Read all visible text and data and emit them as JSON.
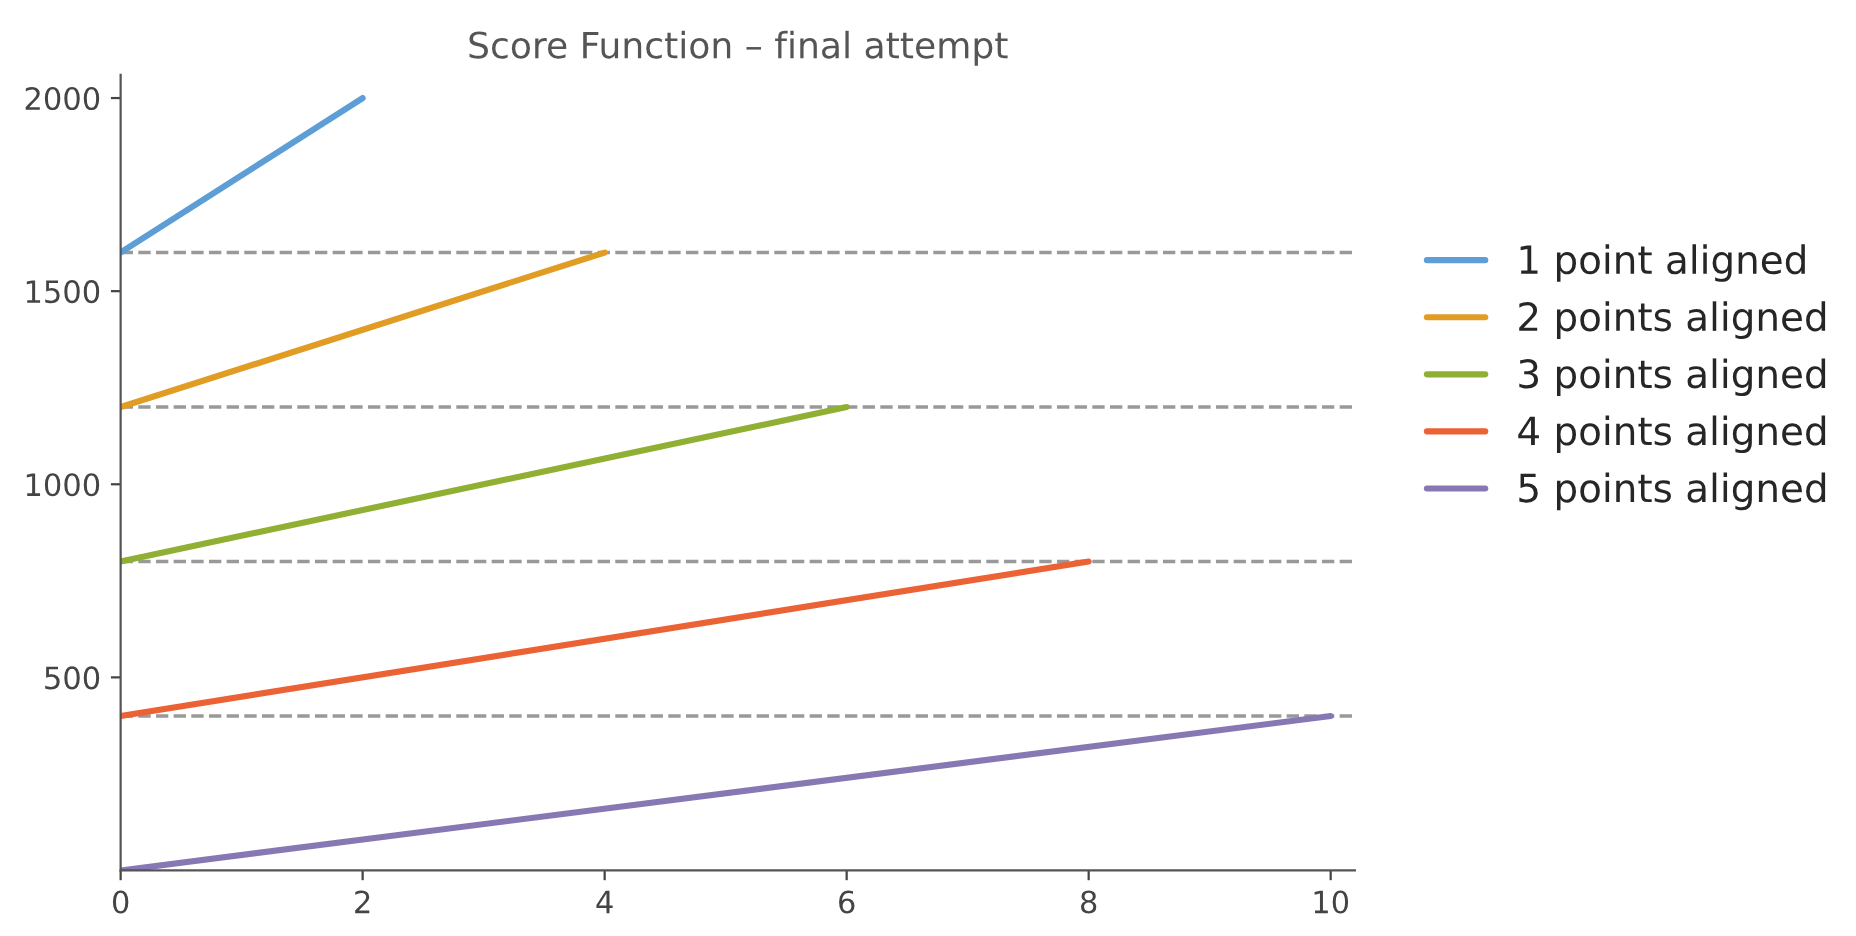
{
  "chart_data": {
    "type": "line",
    "title": "Score Function – final attempt",
    "xlim": [
      0,
      10.2
    ],
    "ylim": [
      0,
      2060
    ],
    "xticks": [
      0,
      2,
      4,
      6,
      8,
      10
    ],
    "yticks": [
      500,
      1000,
      1500,
      2000
    ],
    "legend": "right",
    "grid": false,
    "line_style": "solid",
    "series": [
      {
        "name": "1 point aligned",
        "color": "#5e9ed6",
        "x": [
          0,
          2
        ],
        "values": [
          1600,
          2000
        ]
      },
      {
        "name": "2 points aligned",
        "color": "#e19c24",
        "x": [
          0,
          4
        ],
        "values": [
          1200,
          1600
        ]
      },
      {
        "name": "3 points aligned",
        "color": "#8fb032",
        "x": [
          0,
          6
        ],
        "values": [
          800,
          1200
        ]
      },
      {
        "name": "4 points aligned",
        "color": "#eb6235",
        "x": [
          0,
          8
        ],
        "values": [
          400,
          800
        ]
      },
      {
        "name": "5 points aligned",
        "color": "#8778b3",
        "x": [
          0,
          10
        ],
        "values": [
          0,
          400
        ]
      }
    ],
    "ref_lines": [
      {
        "axis": "y",
        "value": 400,
        "color": "#999999",
        "line_style": "dashed"
      },
      {
        "axis": "y",
        "value": 800,
        "color": "#999999",
        "line_style": "dashed"
      },
      {
        "axis": "y",
        "value": 1200,
        "color": "#999999",
        "line_style": "dashed"
      },
      {
        "axis": "y",
        "value": 1600,
        "color": "#999999",
        "line_style": "dashed"
      }
    ]
  }
}
